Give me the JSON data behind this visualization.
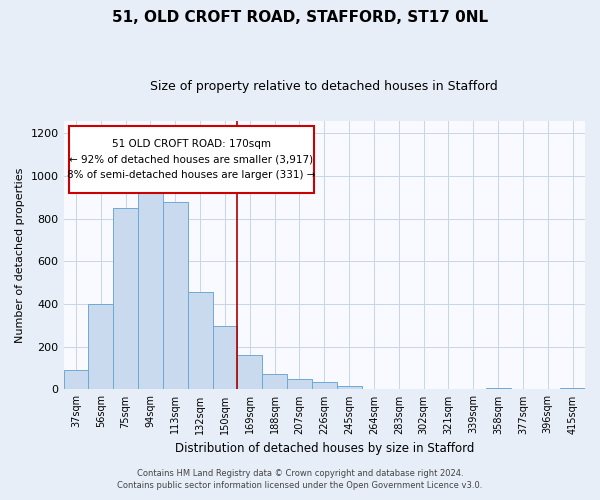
{
  "title": "51, OLD CROFT ROAD, STAFFORD, ST17 0NL",
  "subtitle": "Size of property relative to detached houses in Stafford",
  "xlabel": "Distribution of detached houses by size in Stafford",
  "ylabel": "Number of detached properties",
  "bar_labels": [
    "37sqm",
    "56sqm",
    "75sqm",
    "94sqm",
    "113sqm",
    "132sqm",
    "150sqm",
    "169sqm",
    "188sqm",
    "207sqm",
    "226sqm",
    "245sqm",
    "264sqm",
    "283sqm",
    "302sqm",
    "321sqm",
    "339sqm",
    "358sqm",
    "377sqm",
    "396sqm",
    "415sqm"
  ],
  "bar_values": [
    90,
    400,
    848,
    965,
    880,
    455,
    298,
    160,
    72,
    50,
    33,
    18,
    0,
    0,
    0,
    0,
    0,
    8,
    0,
    0,
    8
  ],
  "bar_color": "#c9d9ee",
  "bar_edge_color": "#6fa8d4",
  "highlight_line_color": "#aa0000",
  "annotation_line1": "51 OLD CROFT ROAD: 170sqm",
  "annotation_line2": "← 92% of detached houses are smaller (3,917)",
  "annotation_line3": "8% of semi-detached houses are larger (331) →",
  "annotation_box_edge_color": "#cc0000",
  "annotation_box_face_color": "#ffffff",
  "ylim": [
    0,
    1260
  ],
  "yticks": [
    0,
    200,
    400,
    600,
    800,
    1000,
    1200
  ],
  "footer_line1": "Contains HM Land Registry data © Crown copyright and database right 2024.",
  "footer_line2": "Contains public sector information licensed under the Open Government Licence v3.0.",
  "bg_color": "#e8eef8",
  "plot_bg_color": "#f8faff",
  "grid_color": "#c8d4e8",
  "title_fontsize": 11,
  "subtitle_fontsize": 9
}
